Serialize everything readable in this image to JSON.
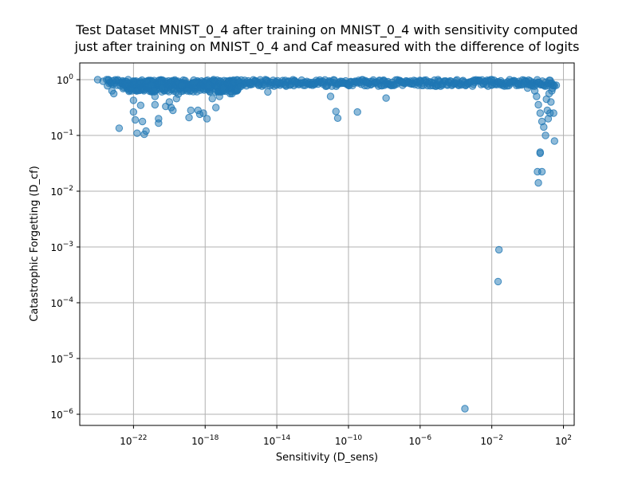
{
  "chart_data": {
    "type": "scatter",
    "title": "Test Dataset MNIST_0_4 after training on MNIST_0_4 with sensitivity computed",
    "title_line2": "just after training on MNIST_0_4 and Caf measured with the difference of logits",
    "xlabel": "Sensitivity (D_sens)",
    "ylabel": "Catastrophic Forgetting (D_cf)",
    "xscale": "log",
    "yscale": "log",
    "xlim_exp": [
      -25,
      2.6
    ],
    "ylim_exp": [
      -6.2,
      0.3
    ],
    "grid": true,
    "color": "#1f77b4",
    "x_ticks": [
      {
        "base": "10",
        "exp": "−22",
        "value_exp": -22
      },
      {
        "base": "10",
        "exp": "−18",
        "value_exp": -18
      },
      {
        "base": "10",
        "exp": "−14",
        "value_exp": -14
      },
      {
        "base": "10",
        "exp": "−10",
        "value_exp": -10
      },
      {
        "base": "10",
        "exp": "−6",
        "value_exp": -6
      },
      {
        "base": "10",
        "exp": "−2",
        "value_exp": -2
      },
      {
        "base": "10",
        "exp": "2",
        "value_exp": 2
      }
    ],
    "y_ticks": [
      {
        "label": "10",
        "exp": "0",
        "value_exp": 0
      },
      {
        "label": "10",
        "exp": "−1",
        "value_exp": -1
      },
      {
        "label": "10",
        "exp": "−2",
        "value_exp": -2
      },
      {
        "label": "10",
        "exp": "−3",
        "value_exp": -3
      },
      {
        "label": "10",
        "exp": "−4",
        "value_exp": -4
      },
      {
        "label": "10",
        "exp": "−5",
        "value_exp": -5
      },
      {
        "label": "10",
        "exp": "−6",
        "value_exp": -6
      }
    ],
    "points_log10": [
      [
        -24.0,
        0.0
      ],
      [
        -23.7,
        -0.03
      ],
      [
        -23.4,
        0.0
      ],
      [
        -23.2,
        -0.2
      ],
      [
        -23.1,
        -0.25
      ],
      [
        -22.8,
        -0.87
      ],
      [
        -22.3,
        0.0
      ],
      [
        -22.1,
        -0.2
      ],
      [
        -22.0,
        -0.37
      ],
      [
        -22.0,
        -0.58
      ],
      [
        -21.9,
        -0.72
      ],
      [
        -21.8,
        -0.96
      ],
      [
        -21.6,
        -0.46
      ],
      [
        -21.5,
        -0.75
      ],
      [
        -21.4,
        -0.98
      ],
      [
        -21.3,
        -0.92
      ],
      [
        -21.0,
        -0.1
      ],
      [
        -20.9,
        -0.2
      ],
      [
        -20.8,
        -0.3
      ],
      [
        -20.8,
        -0.45
      ],
      [
        -20.6,
        -0.7
      ],
      [
        -20.6,
        -0.78
      ],
      [
        -20.4,
        -0.15
      ],
      [
        -20.2,
        -0.48
      ],
      [
        -20.0,
        -0.4
      ],
      [
        -19.9,
        -0.5
      ],
      [
        -19.8,
        -0.55
      ],
      [
        -19.6,
        -0.34
      ],
      [
        -19.5,
        -0.26
      ],
      [
        -19.3,
        -0.1
      ],
      [
        -19.0,
        -0.2
      ],
      [
        -18.9,
        -0.68
      ],
      [
        -18.8,
        -0.55
      ],
      [
        -18.6,
        -0.05
      ],
      [
        -18.4,
        -0.55
      ],
      [
        -18.3,
        -0.62
      ],
      [
        -18.1,
        -0.6
      ],
      [
        -17.9,
        -0.7
      ],
      [
        -17.8,
        -0.1
      ],
      [
        -17.6,
        -0.34
      ],
      [
        -17.4,
        -0.5
      ],
      [
        -17.2,
        -0.3
      ],
      [
        -17.0,
        -0.15
      ],
      [
        -16.6,
        -0.25
      ],
      [
        -16.5,
        -0.25
      ],
      [
        -16.0,
        -0.12
      ],
      [
        -15.5,
        -0.05
      ],
      [
        -15.0,
        -0.1
      ],
      [
        -14.5,
        -0.22
      ],
      [
        -14.0,
        -0.05
      ],
      [
        -13.5,
        -0.1
      ],
      [
        -13.0,
        -0.03
      ],
      [
        -12.0,
        -0.1
      ],
      [
        -11.0,
        -0.3
      ],
      [
        -10.7,
        -0.57
      ],
      [
        -10.6,
        -0.69
      ],
      [
        -10.0,
        -0.1
      ],
      [
        -9.5,
        -0.58
      ],
      [
        -9.0,
        -0.05
      ],
      [
        -8.0,
        -0.1
      ],
      [
        -7.9,
        -0.33
      ],
      [
        -7.0,
        -0.05
      ],
      [
        -6.0,
        -0.03
      ],
      [
        -5.0,
        0.0
      ],
      [
        -4.0,
        -0.02
      ],
      [
        -3.0,
        -0.01
      ],
      [
        -2.0,
        0.0
      ],
      [
        -1.5,
        -0.02
      ],
      [
        -1.0,
        -0.05
      ],
      [
        -0.5,
        -0.1
      ],
      [
        -0.2,
        -0.08
      ],
      [
        0.0,
        -0.15
      ],
      [
        0.2,
        -0.1
      ],
      [
        0.4,
        -0.2
      ],
      [
        0.5,
        -0.3
      ],
      [
        0.6,
        -0.45
      ],
      [
        0.7,
        -0.6
      ],
      [
        0.8,
        -0.75
      ],
      [
        0.9,
        -0.85
      ],
      [
        1.0,
        -1.0
      ],
      [
        1.05,
        -0.35
      ],
      [
        1.1,
        -0.55
      ],
      [
        1.15,
        -0.7
      ],
      [
        1.2,
        -0.25
      ],
      [
        1.25,
        -0.6
      ],
      [
        1.3,
        -0.4
      ],
      [
        1.35,
        -0.2
      ],
      [
        1.4,
        -0.15
      ],
      [
        1.45,
        -0.6
      ],
      [
        1.5,
        -1.1
      ],
      [
        1.6,
        -0.1
      ],
      [
        0.7,
        -1.32
      ],
      [
        0.55,
        -1.65
      ],
      [
        0.6,
        -1.85
      ],
      [
        0.8,
        -1.65
      ],
      [
        0.7,
        -1.3
      ],
      [
        -1.6,
        -3.05
      ],
      [
        -1.65,
        -3.62
      ],
      [
        -3.5,
        -5.9
      ]
    ]
  }
}
